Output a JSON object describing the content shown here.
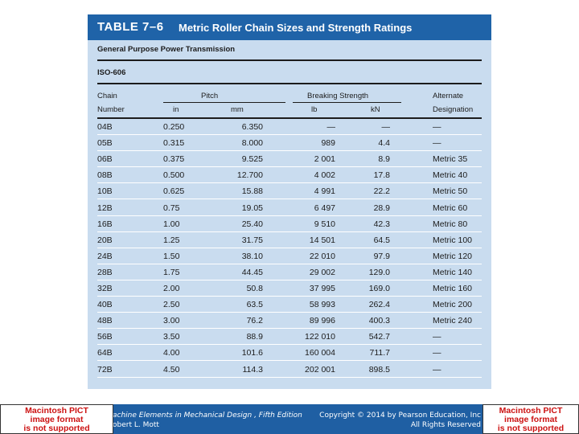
{
  "table": {
    "number": "TABLE 7–6",
    "title": "Metric Roller Chain Sizes and Strength Ratings",
    "subtitle": "General Purpose Power Transmission",
    "standard": "ISO-606",
    "colors": {
      "header_band": "#1f63a8",
      "body": "#c9dcef"
    },
    "headers": {
      "chain_line1": "Chain",
      "chain_line2": "Number",
      "pitch": "Pitch",
      "pitch_in": "in",
      "pitch_mm": "mm",
      "breaking": "Breaking Strength",
      "lb": "lb",
      "kn": "kN",
      "alt_line1": "Alternate",
      "alt_line2": "Designation"
    },
    "rows": [
      {
        "chain": "04B",
        "in": "0.250",
        "mm": "6.350",
        "lb": "—",
        "kn": "—",
        "alt": "—"
      },
      {
        "chain": "05B",
        "in": "0.315",
        "mm": "8.000",
        "lb": "989",
        "kn": "4.4",
        "alt": "—"
      },
      {
        "chain": "06B",
        "in": "0.375",
        "mm": "9.525",
        "lb": "2 001",
        "kn": "8.9",
        "alt": "Metric 35"
      },
      {
        "chain": "08B",
        "in": "0.500",
        "mm": "12.700",
        "lb": "4 002",
        "kn": "17.8",
        "alt": "Metric 40"
      },
      {
        "chain": "10B",
        "in": "0.625",
        "mm": "15.88",
        "lb": "4 991",
        "kn": "22.2",
        "alt": "Metric 50"
      },
      {
        "chain": "12B",
        "in": "0.75",
        "mm": "19.05",
        "lb": "6 497",
        "kn": "28.9",
        "alt": "Metric 60"
      },
      {
        "chain": "16B",
        "in": "1.00",
        "mm": "25.40",
        "lb": "9 510",
        "kn": "42.3",
        "alt": "Metric 80"
      },
      {
        "chain": "20B",
        "in": "1.25",
        "mm": "31.75",
        "lb": "14 501",
        "kn": "64.5",
        "alt": "Metric 100"
      },
      {
        "chain": "24B",
        "in": "1.50",
        "mm": "38.10",
        "lb": "22 010",
        "kn": "97.9",
        "alt": "Metric 120"
      },
      {
        "chain": "28B",
        "in": "1.75",
        "mm": "44.45",
        "lb": "29 002",
        "kn": "129.0",
        "alt": "Metric 140"
      },
      {
        "chain": "32B",
        "in": "2.00",
        "mm": "50.8",
        "lb": "37 995",
        "kn": "169.0",
        "alt": "Metric 160"
      },
      {
        "chain": "40B",
        "in": "2.50",
        "mm": "63.5",
        "lb": "58 993",
        "kn": "262.4",
        "alt": "Metric 200"
      },
      {
        "chain": "48B",
        "in": "3.00",
        "mm": "76.2",
        "lb": "89 996",
        "kn": "400.3",
        "alt": "Metric 240"
      },
      {
        "chain": "56B",
        "in": "3.50",
        "mm": "88.9",
        "lb": "122 010",
        "kn": "542.7",
        "alt": "—"
      },
      {
        "chain": "64B",
        "in": "4.00",
        "mm": "101.6",
        "lb": "160 004",
        "kn": "711.7",
        "alt": "—"
      },
      {
        "chain": "72B",
        "in": "4.50",
        "mm": "114.3",
        "lb": "202 001",
        "kn": "898.5",
        "alt": "—"
      }
    ]
  },
  "footer": {
    "pict_left_line1": "Macintosh PICT",
    "pict_left_line2": "image format",
    "pict_left_line3": "is not supported",
    "pict_right_line1": "Macintosh PICT",
    "pict_right_line2": "image format",
    "pict_right_line3": "is not supported",
    "book_line1": "achine Elements in Mechanical Design , Fifth Edition",
    "book_line2": "obert L. Mott",
    "copyright_line1": "Copyright © 2014 by Pearson Education, Inc",
    "copyright_line2": "All Rights Reserved",
    "colors": {
      "band": "#1f5fa3",
      "pict_text": "#cc1111"
    }
  }
}
